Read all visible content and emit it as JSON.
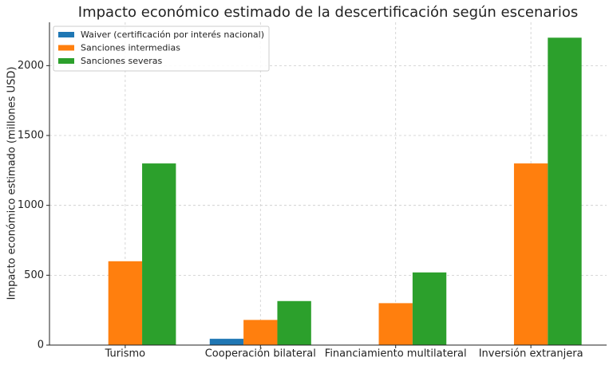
{
  "chart_data": {
    "type": "bar",
    "title": "Impacto económico estimado de la descertificación según escenarios",
    "y_label": "Impacto económico estimado (millones USD)",
    "categories": [
      "Turismo",
      "Cooperación bilateral",
      "Financiamiento multilateral",
      "Inversión extranjera"
    ],
    "series": [
      {
        "name": "Waiver (certificación por interés nacional)",
        "color": "#1f77b4",
        "values": [
          0,
          45,
          0,
          0
        ]
      },
      {
        "name": "Sanciones intermedias",
        "color": "#ff7f0e",
        "values": [
          600,
          180,
          300,
          1300
        ]
      },
      {
        "name": "Sanciones severas",
        "color": "#2ca02c",
        "values": [
          1300,
          315,
          520,
          2200
        ]
      }
    ],
    "ylim": [
      0,
      2310
    ],
    "yticks": [
      0,
      500,
      1000,
      1500,
      2000
    ],
    "grid": true,
    "legend": "upper-left"
  }
}
